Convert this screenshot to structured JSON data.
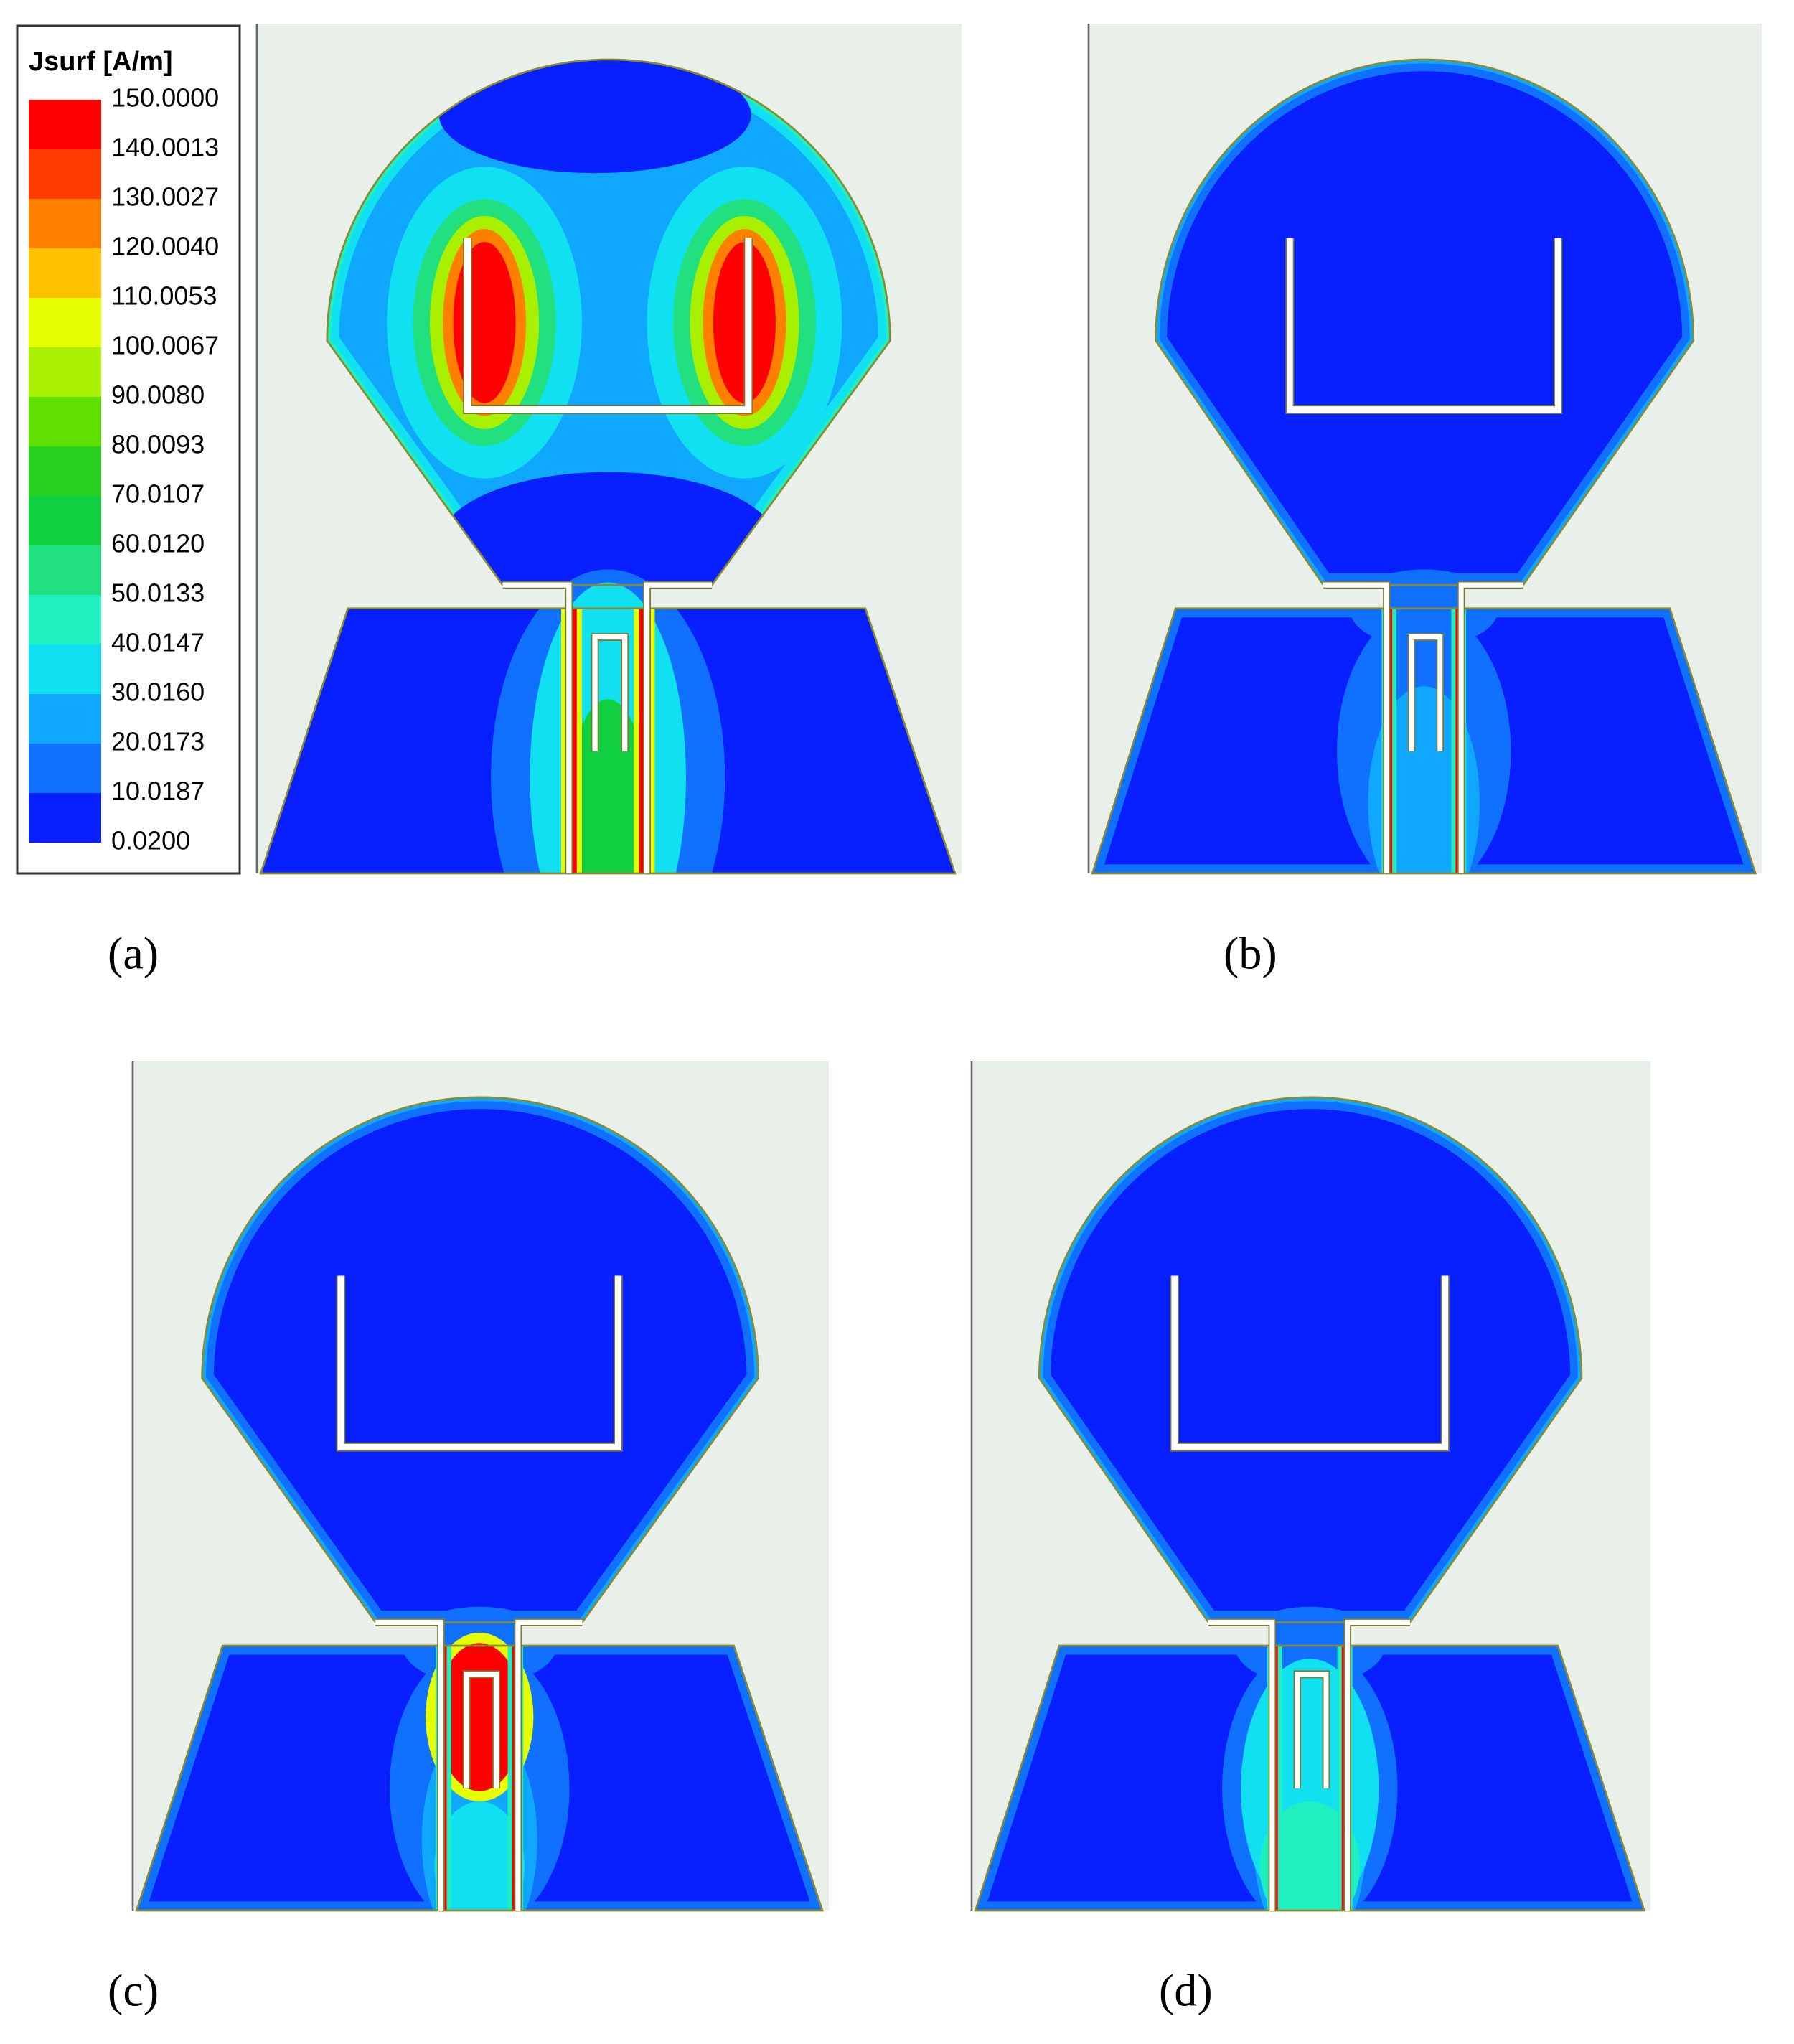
{
  "legend": {
    "title": "Jsurf [A/m]",
    "labels": [
      "150.0000",
      "140.0013",
      "130.0027",
      "120.0040",
      "110.0053",
      "100.0067",
      "90.0080",
      "80.0093",
      "70.0107",
      "60.0120",
      "50.0133",
      "40.0147",
      "30.0160",
      "20.0173",
      "10.0187",
      "0.0200"
    ],
    "colors": [
      "#ff0000",
      "#ff3c00",
      "#ff8000",
      "#ffc000",
      "#e6ff00",
      "#a8f000",
      "#60e000",
      "#28d020",
      "#10d040",
      "#20e080",
      "#20f0c0",
      "#10e0f0",
      "#10a8ff",
      "#1070ff",
      "#0820ff"
    ]
  },
  "panels": [
    {
      "label": "(a)"
    },
    {
      "label": "(b)"
    },
    {
      "label": "(c)"
    },
    {
      "label": "(d)"
    }
  ]
}
